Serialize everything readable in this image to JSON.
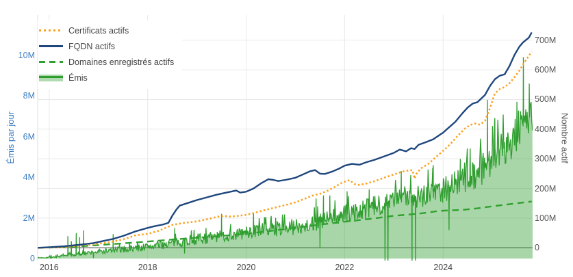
{
  "chart_data": {
    "type": "line",
    "title": "",
    "background": "#ffffff",
    "grid": {
      "color": "#e9e9e9",
      "zero_line_color": "#3d3d3d",
      "horizontal_gridlines_follow": "right axis ticks",
      "vertical_gridlines_follow": "x axis ticks"
    },
    "legend_position": "top-left",
    "x_axis": {
      "tick_labels": [
        "2016",
        "2018",
        "2020",
        "2022",
        "2024"
      ],
      "tick_years": [
        2016,
        2018,
        2020,
        2022,
        2024
      ],
      "range": [
        2015.77,
        2025.82
      ],
      "label_color": "#444444"
    },
    "y_axis_left": {
      "title": "Émis par jour",
      "tick_labels": [
        "0",
        "2M",
        "4M",
        "6M",
        "8M",
        "10M"
      ],
      "tick_values_millions": [
        0,
        2,
        4,
        6,
        8,
        10
      ],
      "color": "#3d7fc4"
    },
    "y_axis_right": {
      "title": "Nombre actif",
      "tick_labels": [
        "0",
        "100M",
        "200M",
        "300M",
        "400M",
        "500M",
        "600M",
        "700M"
      ],
      "tick_values_millions": [
        0,
        100,
        200,
        300,
        400,
        500,
        600,
        700
      ],
      "color": "#555555"
    },
    "series": [
      {
        "name": "Certificats actifs",
        "axis": "right",
        "line_style": "dotted",
        "color": "#faa21e",
        "points_year_millions": [
          [
            2015.77,
            0
          ],
          [
            2016.0,
            1
          ],
          [
            2016.3,
            3
          ],
          [
            2016.6,
            7
          ],
          [
            2016.9,
            12
          ],
          [
            2017.2,
            18
          ],
          [
            2017.5,
            28
          ],
          [
            2017.75,
            42
          ],
          [
            2018.0,
            47
          ],
          [
            2018.2,
            56
          ],
          [
            2018.35,
            66
          ],
          [
            2018.5,
            77
          ],
          [
            2018.7,
            83
          ],
          [
            2019.0,
            89
          ],
          [
            2019.2,
            96
          ],
          [
            2019.4,
            104
          ],
          [
            2019.55,
            108
          ],
          [
            2019.65,
            105
          ],
          [
            2019.8,
            107
          ],
          [
            2020.0,
            111
          ],
          [
            2020.2,
            119
          ],
          [
            2020.4,
            128
          ],
          [
            2020.6,
            136
          ],
          [
            2020.8,
            144
          ],
          [
            2021.0,
            153
          ],
          [
            2021.2,
            166
          ],
          [
            2021.35,
            176
          ],
          [
            2021.5,
            182
          ],
          [
            2021.65,
            192
          ],
          [
            2021.8,
            205
          ],
          [
            2021.95,
            220
          ],
          [
            2022.1,
            228
          ],
          [
            2022.2,
            215
          ],
          [
            2022.3,
            212
          ],
          [
            2022.45,
            217
          ],
          [
            2022.6,
            224
          ],
          [
            2022.8,
            236
          ],
          [
            2023.0,
            247
          ],
          [
            2023.15,
            256
          ],
          [
            2023.3,
            261
          ],
          [
            2023.38,
            262
          ],
          [
            2023.42,
            233
          ],
          [
            2023.47,
            252
          ],
          [
            2023.55,
            268
          ],
          [
            2023.7,
            283
          ],
          [
            2023.85,
            305
          ],
          [
            2024.0,
            327
          ],
          [
            2024.15,
            350
          ],
          [
            2024.3,
            378
          ],
          [
            2024.45,
            403
          ],
          [
            2024.55,
            414
          ],
          [
            2024.65,
            419
          ],
          [
            2024.75,
            415
          ],
          [
            2024.85,
            428
          ],
          [
            2024.95,
            470
          ],
          [
            2025.05,
            520
          ],
          [
            2025.15,
            535
          ],
          [
            2025.25,
            542
          ],
          [
            2025.35,
            555
          ],
          [
            2025.45,
            575
          ],
          [
            2025.55,
            597
          ],
          [
            2025.65,
            625
          ],
          [
            2025.72,
            642
          ],
          [
            2025.8,
            661
          ]
        ]
      },
      {
        "name": "FQDN actifs",
        "axis": "right",
        "line_style": "solid",
        "color": "#1f477d",
        "points_year_millions": [
          [
            2015.77,
            0
          ],
          [
            2016.0,
            2
          ],
          [
            2016.3,
            5
          ],
          [
            2016.6,
            10
          ],
          [
            2016.9,
            16
          ],
          [
            2017.1,
            23
          ],
          [
            2017.3,
            30
          ],
          [
            2017.5,
            40
          ],
          [
            2017.75,
            55
          ],
          [
            2018.0,
            67
          ],
          [
            2018.15,
            73
          ],
          [
            2018.3,
            78
          ],
          [
            2018.42,
            84
          ],
          [
            2018.5,
            108
          ],
          [
            2018.58,
            128
          ],
          [
            2018.65,
            142
          ],
          [
            2018.8,
            150
          ],
          [
            2019.0,
            161
          ],
          [
            2019.2,
            170
          ],
          [
            2019.4,
            179
          ],
          [
            2019.6,
            186
          ],
          [
            2019.8,
            193
          ],
          [
            2019.88,
            186
          ],
          [
            2020.0,
            189
          ],
          [
            2020.15,
            200
          ],
          [
            2020.3,
            217
          ],
          [
            2020.45,
            231
          ],
          [
            2020.55,
            229
          ],
          [
            2020.65,
            225
          ],
          [
            2020.8,
            229
          ],
          [
            2021.0,
            236
          ],
          [
            2021.15,
            247
          ],
          [
            2021.3,
            258
          ],
          [
            2021.4,
            262
          ],
          [
            2021.5,
            250
          ],
          [
            2021.6,
            249
          ],
          [
            2021.75,
            257
          ],
          [
            2021.9,
            268
          ],
          [
            2022.0,
            277
          ],
          [
            2022.15,
            283
          ],
          [
            2022.3,
            280
          ],
          [
            2022.45,
            289
          ],
          [
            2022.6,
            296
          ],
          [
            2022.8,
            308
          ],
          [
            2023.0,
            320
          ],
          [
            2023.12,
            331
          ],
          [
            2023.25,
            325
          ],
          [
            2023.35,
            336
          ],
          [
            2023.42,
            333
          ],
          [
            2023.5,
            347
          ],
          [
            2023.65,
            356
          ],
          [
            2023.8,
            366
          ],
          [
            2023.9,
            377
          ],
          [
            2024.0,
            388
          ],
          [
            2024.1,
            403
          ],
          [
            2024.25,
            425
          ],
          [
            2024.4,
            455
          ],
          [
            2024.5,
            473
          ],
          [
            2024.6,
            486
          ],
          [
            2024.7,
            491
          ],
          [
            2024.85,
            515
          ],
          [
            2024.95,
            545
          ],
          [
            2025.05,
            568
          ],
          [
            2025.15,
            580
          ],
          [
            2025.25,
            585
          ],
          [
            2025.35,
            613
          ],
          [
            2025.45,
            650
          ],
          [
            2025.55,
            678
          ],
          [
            2025.62,
            692
          ],
          [
            2025.7,
            703
          ],
          [
            2025.74,
            708
          ],
          [
            2025.8,
            726
          ]
        ]
      },
      {
        "name": "Domaines enregistrés actifs",
        "axis": "right",
        "line_style": "dashed",
        "color": "#2fa12e",
        "points_year_millions": [
          [
            2015.77,
            0
          ],
          [
            2016.0,
            0.5
          ],
          [
            2016.5,
            4
          ],
          [
            2017.0,
            9
          ],
          [
            2017.5,
            15
          ],
          [
            2018.0,
            21
          ],
          [
            2018.5,
            28
          ],
          [
            2019.0,
            34
          ],
          [
            2019.5,
            40
          ],
          [
            2020.0,
            47
          ],
          [
            2020.5,
            57
          ],
          [
            2021.0,
            68
          ],
          [
            2021.5,
            78
          ],
          [
            2022.0,
            88
          ],
          [
            2022.5,
            97
          ],
          [
            2023.0,
            108
          ],
          [
            2023.3,
            112
          ],
          [
            2023.6,
            117
          ],
          [
            2023.9,
            124
          ],
          [
            2024.1,
            126
          ],
          [
            2024.4,
            128
          ],
          [
            2024.7,
            133
          ],
          [
            2025.0,
            140
          ],
          [
            2025.3,
            146
          ],
          [
            2025.5,
            150
          ],
          [
            2025.8,
            156
          ]
        ]
      },
      {
        "name": "Émis",
        "axis": "left",
        "line_style": "solid",
        "area_fill": true,
        "color": "#2f9e2f",
        "fill_color": "rgba(47,158,47,0.42)",
        "trend_points_year_millions": [
          [
            2015.77,
            0.03
          ],
          [
            2016.0,
            0.06
          ],
          [
            2016.3,
            0.12
          ],
          [
            2016.6,
            0.22
          ],
          [
            2016.9,
            0.3
          ],
          [
            2017.2,
            0.38
          ],
          [
            2017.5,
            0.45
          ],
          [
            2017.8,
            0.52
          ],
          [
            2018.1,
            0.62
          ],
          [
            2018.4,
            0.72
          ],
          [
            2018.7,
            0.85
          ],
          [
            2019.0,
            0.95
          ],
          [
            2019.3,
            1.02
          ],
          [
            2019.6,
            1.12
          ],
          [
            2019.9,
            1.22
          ],
          [
            2020.2,
            1.35
          ],
          [
            2020.5,
            1.45
          ],
          [
            2020.8,
            1.5
          ],
          [
            2021.1,
            1.6
          ],
          [
            2021.4,
            1.75
          ],
          [
            2021.7,
            1.95
          ],
          [
            2022.0,
            2.15
          ],
          [
            2022.3,
            2.3
          ],
          [
            2022.6,
            2.55
          ],
          [
            2022.9,
            2.8
          ],
          [
            2023.2,
            3.0
          ],
          [
            2023.5,
            3.1
          ],
          [
            2023.8,
            3.3
          ],
          [
            2024.1,
            3.5
          ],
          [
            2024.4,
            3.9
          ],
          [
            2024.7,
            4.3
          ],
          [
            2024.9,
            4.7
          ],
          [
            2025.1,
            5.2
          ],
          [
            2025.3,
            5.6
          ],
          [
            2025.5,
            6.2
          ],
          [
            2025.65,
            6.8
          ],
          [
            2025.8,
            7.0
          ]
        ],
        "noise_band_millions": [
          [
            2015.77,
            0.02
          ],
          [
            2016.5,
            0.08
          ],
          [
            2017.0,
            0.13
          ],
          [
            2018.0,
            0.2
          ],
          [
            2019.0,
            0.28
          ],
          [
            2020.0,
            0.33
          ],
          [
            2021.0,
            0.4
          ],
          [
            2022.0,
            0.5
          ],
          [
            2023.0,
            0.55
          ],
          [
            2024.0,
            0.7
          ],
          [
            2024.8,
            0.85
          ],
          [
            2025.3,
            0.95
          ],
          [
            2025.8,
            1.05
          ]
        ],
        "up_spikes_year_millions": [
          [
            2016.38,
            1.1
          ],
          [
            2016.45,
            0.85
          ],
          [
            2016.55,
            1.25
          ],
          [
            2016.62,
            1.05
          ],
          [
            2016.7,
            1.38
          ],
          [
            2017.3,
            1.2
          ],
          [
            2018.55,
            1.5
          ],
          [
            2019.5,
            2.2
          ],
          [
            2020.15,
            2.2
          ],
          [
            2020.6,
            2.0
          ],
          [
            2021.42,
            2.95
          ],
          [
            2021.57,
            3.1
          ],
          [
            2021.7,
            3.1
          ],
          [
            2022.05,
            3.3
          ],
          [
            2022.5,
            3.4
          ],
          [
            2023.15,
            4.3
          ],
          [
            2023.8,
            4.6
          ],
          [
            2024.35,
            4.9
          ],
          [
            2024.55,
            5.4
          ],
          [
            2024.9,
            7.8
          ],
          [
            2025.05,
            6.9
          ],
          [
            2025.5,
            7.7
          ],
          [
            2025.63,
            9.9
          ],
          [
            2025.75,
            8.6
          ]
        ],
        "down_spikes_year_millions": [
          [
            2016.9,
            0.02
          ],
          [
            2018.75,
            0.25
          ],
          [
            2021.5,
            0.5
          ],
          [
            2022.82,
            -0.5
          ],
          [
            2022.88,
            -0.5
          ],
          [
            2023.37,
            -0.5
          ],
          [
            2023.44,
            -0.5
          ],
          [
            2024.12,
            1.4
          ]
        ]
      }
    ]
  }
}
